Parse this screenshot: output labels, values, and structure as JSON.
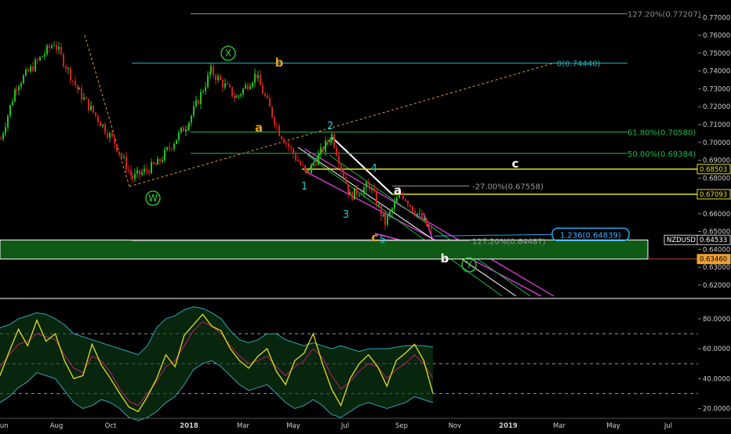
{
  "chart_data": [
    {
      "type": "candlestick",
      "symbol": "NZDUSD",
      "ylim": [
        0.6125,
        0.7785
      ],
      "y_ticks": [
        "0.77000",
        "0.76000",
        "0.75000",
        "0.74000",
        "0.73000",
        "0.72000",
        "0.71000",
        "0.70000",
        "0.69000",
        "0.68000",
        "0.67000",
        "0.66000",
        "0.65000",
        "0.64000",
        "0.63000",
        "0.62000"
      ],
      "x_ticks": [
        "Jun",
        "Aug",
        "Oct",
        "2018",
        "Mar",
        "May",
        "Jul",
        "Sep",
        "Nov",
        "2019",
        "Mar",
        "May",
        "Jul"
      ],
      "price_tags": [
        {
          "label": "0.68503",
          "value": 0.68503,
          "style": "yellow"
        },
        {
          "label": "0.67093",
          "value": 0.67093,
          "style": "yellow"
        },
        {
          "label": "NZDUSD",
          "value": 0.64533,
          "style": "symbol"
        },
        {
          "label": "0.64533",
          "value": 0.64533,
          "style": "plain"
        },
        {
          "label": "0.63460",
          "value": 0.6346,
          "style": "orange"
        }
      ],
      "fib_levels": [
        {
          "label": "127.20%(0.77207)",
          "value": 0.77207,
          "color": "#8c8c8c"
        },
        {
          "label": "0(0.74440)",
          "value": 0.7444,
          "color": "#1fb8b8"
        },
        {
          "label": "61.80%(0.70580)",
          "value": 0.7058,
          "color": "#1db84a"
        },
        {
          "label": "50.00%(0.69384)",
          "value": 0.69384,
          "color": "#1db84a"
        },
        {
          "label": "-27.00%(0.67558)",
          "value": 0.67558,
          "color": "#9a9a9a"
        },
        {
          "label": "127.20%(0.64487)",
          "value": 0.64487,
          "color": "#9a9a9a"
        }
      ],
      "annotation_box": {
        "label": "1.236(0.64839)",
        "value": 0.64839
      },
      "support_zone": {
        "from": 0.6346,
        "to": 0.6453,
        "color": "#0f5a14"
      },
      "wave_labels": [
        {
          "text": "X",
          "color": "#2fd12f",
          "circled": true
        },
        {
          "text": "W",
          "color": "#2fd12f",
          "circled": true
        },
        {
          "text": "Y",
          "color": "#2fd12f",
          "circled": true
        },
        {
          "text": "b",
          "color": "#e0a020"
        },
        {
          "text": "a",
          "color": "#e0a020"
        },
        {
          "text": "c",
          "color": "#e0a020"
        },
        {
          "text": "1",
          "color": "#1fc8c8"
        },
        {
          "text": "2",
          "color": "#1fc8c8"
        },
        {
          "text": "3",
          "color": "#1fc8c8"
        },
        {
          "text": "4",
          "color": "#1fc8c8"
        },
        {
          "text": "5",
          "color": "#1fc8c8"
        },
        {
          "text": "a",
          "color": "#ffffff"
        },
        {
          "text": "b",
          "color": "#ffffff"
        },
        {
          "text": "c",
          "color": "#ffffff"
        }
      ],
      "price_anchors": [
        {
          "x": "Jun",
          "y": 0.702
        },
        {
          "x": "Jul",
          "y": 0.732
        },
        {
          "x": "Jul",
          "y": 0.756
        },
        {
          "x": "Sep",
          "y": 0.728
        },
        {
          "x": "Oct",
          "y": 0.7
        },
        {
          "x": "Nov",
          "y": 0.68
        },
        {
          "x": "Dec",
          "y": 0.688
        },
        {
          "x": "Jan",
          "y": 0.712
        },
        {
          "x": "Feb",
          "y": 0.74
        },
        {
          "x": "Mar",
          "y": 0.725
        },
        {
          "x": "Apr",
          "y": 0.738
        },
        {
          "x": "May",
          "y": 0.706
        },
        {
          "x": "May",
          "y": 0.682
        },
        {
          "x": "Jun",
          "y": 0.704
        },
        {
          "x": "Jul",
          "y": 0.67
        },
        {
          "x": "Aug",
          "y": 0.676
        },
        {
          "x": "Aug",
          "y": 0.655
        },
        {
          "x": "Sep",
          "y": 0.672
        },
        {
          "x": "Sep",
          "y": 0.648
        }
      ]
    },
    {
      "type": "line",
      "ylim": [
        14,
        92
      ],
      "y_ticks": [
        "80.0000",
        "60.0000",
        "40.0000",
        "20.0000"
      ],
      "reference_lines": [
        70,
        50,
        30
      ],
      "series": [
        {
          "color": "#e0e020",
          "values": [
            42,
            58,
            73,
            62,
            79,
            65,
            70,
            52,
            40,
            42,
            63,
            49,
            40,
            30,
            21,
            18,
            28,
            40,
            56,
            48,
            69,
            76,
            83,
            75,
            72,
            60,
            52,
            47,
            55,
            60,
            45,
            36,
            52,
            57,
            70,
            50,
            33,
            22,
            40,
            50,
            56,
            48,
            35,
            52,
            57,
            63,
            52,
            30
          ]
        },
        {
          "color": "#c02060",
          "values": [
            48,
            56,
            63,
            65,
            70,
            68,
            66,
            56,
            47,
            44,
            55,
            52,
            44,
            33,
            25,
            22,
            30,
            38,
            48,
            52,
            62,
            72,
            78,
            75,
            70,
            62,
            55,
            50,
            52,
            55,
            48,
            42,
            48,
            52,
            60,
            54,
            42,
            33,
            38,
            45,
            50,
            48,
            40,
            46,
            50,
            56,
            50,
            40
          ]
        },
        {
          "color": "#2fa6b8",
          "values": [
            74,
            76,
            80,
            82,
            84,
            83,
            80,
            76,
            70,
            68,
            66,
            64,
            62,
            60,
            58,
            56,
            62,
            74,
            80,
            82,
            86,
            88,
            87,
            84,
            80,
            72,
            66,
            64,
            66,
            70,
            70,
            66,
            64,
            62,
            64,
            62,
            60,
            62,
            60,
            58,
            60,
            60,
            60,
            61,
            62,
            62,
            62,
            61
          ]
        },
        {
          "color": "#2fa6b8",
          "values": [
            24,
            28,
            34,
            38,
            44,
            42,
            40,
            32,
            24,
            20,
            22,
            26,
            24,
            20,
            14,
            12,
            14,
            18,
            24,
            28,
            36,
            46,
            50,
            52,
            48,
            42,
            36,
            32,
            34,
            36,
            30,
            24,
            20,
            22,
            26,
            22,
            16,
            14,
            18,
            22,
            24,
            22,
            20,
            22,
            24,
            28,
            26,
            24
          ]
        }
      ]
    }
  ]
}
